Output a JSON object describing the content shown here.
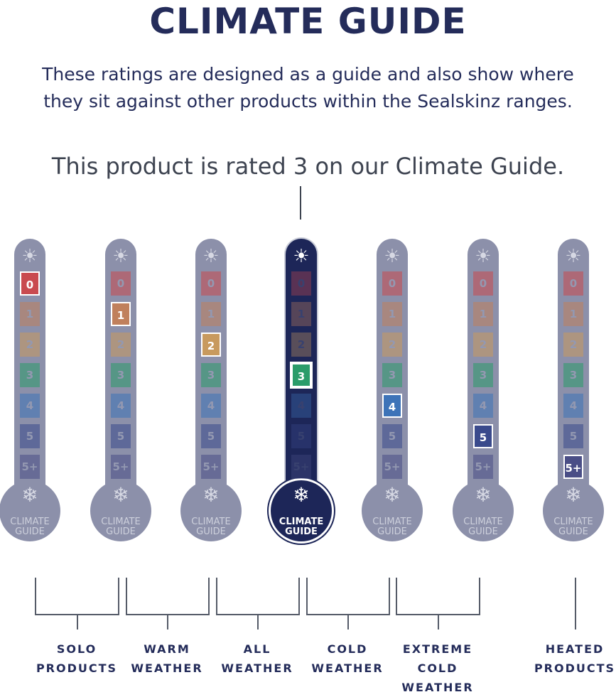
{
  "title": "CLIMATE GUIDE",
  "subtitle_line1": "These ratings are designed as a guide and also show where",
  "subtitle_line2": "they sit against other products within the Sealskinz ranges.",
  "rating_text": "This product is rated 3 on our Climate Guide.",
  "current_rating": 3,
  "bulb_label_line1": "CLIMATE",
  "bulb_label_line2": "GUIDE",
  "scale_labels": [
    "0",
    "1",
    "2",
    "3",
    "4",
    "5",
    "5+"
  ],
  "scale_colors": [
    "#c94a4f",
    "#c0805c",
    "#c89a5e",
    "#2b9c6a",
    "#3d73b8",
    "#3a4a8c",
    "#4a4e86"
  ],
  "thermometers": [
    {
      "highlight": 0,
      "active": false
    },
    {
      "highlight": 1,
      "active": false
    },
    {
      "highlight": 2,
      "active": false
    },
    {
      "highlight": 3,
      "active": true
    },
    {
      "highlight": 4,
      "active": false
    },
    {
      "highlight": 5,
      "active": false
    },
    {
      "highlight": 6,
      "active": false
    }
  ],
  "icons": {
    "top": "sun-icon",
    "bottom": "snowflake-icon"
  },
  "categories": [
    {
      "line1": "SOLO",
      "line2": "PRODUCTS",
      "line3": ""
    },
    {
      "line1": "WARM",
      "line2": "WEATHER",
      "line3": ""
    },
    {
      "line1": "ALL",
      "line2": "WEATHER",
      "line3": ""
    },
    {
      "line1": "COLD",
      "line2": "WEATHER",
      "line3": ""
    },
    {
      "line1": "EXTREME",
      "line2": "COLD",
      "line3": "WEATHER"
    },
    {
      "line1": "HEATED",
      "line2": "PRODUCTS",
      "line3": ""
    }
  ]
}
